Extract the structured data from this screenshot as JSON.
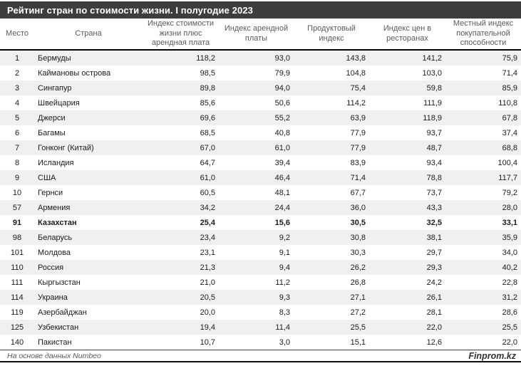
{
  "title": "Рейтинг стран по стоимости жизни. I полугодие 2023",
  "table": {
    "header": [
      "Место",
      "Страна",
      "Индекс стоимости\nжизни плюс\nарендная плата",
      "Индекс арендной\nплаты",
      "Продуктовый\nиндекс",
      "Индекс цен в\nресторанах",
      "Местный индекс\nпокупательной\nспособности"
    ],
    "rows": [
      {
        "rank": "1",
        "country": "Бермуды",
        "values": [
          "118,2",
          "93,0",
          "143,8",
          "141,2",
          "75,9"
        ],
        "bold": false
      },
      {
        "rank": "2",
        "country": "Каймановы острова",
        "values": [
          "98,5",
          "79,9",
          "104,8",
          "103,0",
          "71,4"
        ],
        "bold": false
      },
      {
        "rank": "3",
        "country": "Сингапур",
        "values": [
          "89,8",
          "94,0",
          "75,4",
          "59,8",
          "85,9"
        ],
        "bold": false
      },
      {
        "rank": "4",
        "country": "Швейцария",
        "values": [
          "85,6",
          "50,6",
          "114,2",
          "111,9",
          "110,8"
        ],
        "bold": false
      },
      {
        "rank": "5",
        "country": "Джерси",
        "values": [
          "69,6",
          "55,2",
          "63,9",
          "118,9",
          "67,8"
        ],
        "bold": false
      },
      {
        "rank": "6",
        "country": "Багамы",
        "values": [
          "68,5",
          "40,8",
          "77,9",
          "93,7",
          "37,4"
        ],
        "bold": false
      },
      {
        "rank": "7",
        "country": "Гонконг (Китай)",
        "values": [
          "67,0",
          "61,0",
          "77,9",
          "48,7",
          "68,8"
        ],
        "bold": false
      },
      {
        "rank": "8",
        "country": "Исландия",
        "values": [
          "64,7",
          "39,4",
          "83,9",
          "93,4",
          "100,4"
        ],
        "bold": false
      },
      {
        "rank": "9",
        "country": "США",
        "values": [
          "61,0",
          "46,4",
          "71,4",
          "78,8",
          "117,7"
        ],
        "bold": false
      },
      {
        "rank": "10",
        "country": "Гернси",
        "values": [
          "60,5",
          "48,1",
          "67,7",
          "73,7",
          "79,2"
        ],
        "bold": false
      },
      {
        "rank": "57",
        "country": "Армения",
        "values": [
          "34,2",
          "24,4",
          "36,0",
          "43,3",
          "28,0"
        ],
        "bold": false
      },
      {
        "rank": "91",
        "country": "Казахстан",
        "values": [
          "25,4",
          "15,6",
          "30,5",
          "32,5",
          "33,1"
        ],
        "bold": true
      },
      {
        "rank": "98",
        "country": "Беларусь",
        "values": [
          "23,4",
          "9,2",
          "30,8",
          "38,1",
          "35,9"
        ],
        "bold": false
      },
      {
        "rank": "101",
        "country": "Молдова",
        "values": [
          "23,1",
          "9,1",
          "30,3",
          "29,7",
          "34,0"
        ],
        "bold": false
      },
      {
        "rank": "110",
        "country": "Россия",
        "values": [
          "21,3",
          "9,4",
          "26,2",
          "29,3",
          "40,2"
        ],
        "bold": false
      },
      {
        "rank": "111",
        "country": "Кыргызстан",
        "values": [
          "21,0",
          "11,2",
          "26,8",
          "24,2",
          "22,8"
        ],
        "bold": false
      },
      {
        "rank": "114",
        "country": "Украина",
        "values": [
          "20,5",
          "9,3",
          "27,1",
          "26,1",
          "31,2"
        ],
        "bold": false
      },
      {
        "rank": "119",
        "country": "Азербайджан",
        "values": [
          "20,0",
          "8,3",
          "27,2",
          "28,1",
          "28,6"
        ],
        "bold": false
      },
      {
        "rank": "125",
        "country": "Узбекистан",
        "values": [
          "19,4",
          "11,4",
          "25,5",
          "22,0",
          "25,5"
        ],
        "bold": false
      },
      {
        "rank": "140",
        "country": "Пакистан",
        "values": [
          "10,7",
          "3,0",
          "15,1",
          "12,6",
          "22,0"
        ],
        "bold": false
      }
    ]
  },
  "footer": {
    "source": "На основе данных Numbeo",
    "brand": "Finprom.kz"
  },
  "colors": {
    "title_bar_bg": "#3d3d3d",
    "title_text": "#ffffff",
    "header_text": "#595959",
    "row_stripe": "#f0f0f0",
    "data_text": "#1a1a1a",
    "heavy_border": "#000000"
  },
  "chart_data": {
    "type": "table",
    "title": "Рейтинг стран по стоимости жизни. I полугодие 2023",
    "columns": [
      "Место",
      "Страна",
      "Индекс стоимости жизни плюс арендная плата",
      "Индекс арендной платы",
      "Продуктовый индекс",
      "Индекс цен в ресторанах",
      "Местный индекс покупательной способности"
    ],
    "rows": [
      [
        1,
        "Бермуды",
        118.2,
        93.0,
        143.8,
        141.2,
        75.9
      ],
      [
        2,
        "Каймановы острова",
        98.5,
        79.9,
        104.8,
        103.0,
        71.4
      ],
      [
        3,
        "Сингапур",
        89.8,
        94.0,
        75.4,
        59.8,
        85.9
      ],
      [
        4,
        "Швейцария",
        85.6,
        50.6,
        114.2,
        111.9,
        110.8
      ],
      [
        5,
        "Джерси",
        69.6,
        55.2,
        63.9,
        118.9,
        67.8
      ],
      [
        6,
        "Багамы",
        68.5,
        40.8,
        77.9,
        93.7,
        37.4
      ],
      [
        7,
        "Гонконг (Китай)",
        67.0,
        61.0,
        77.9,
        48.7,
        68.8
      ],
      [
        8,
        "Исландия",
        64.7,
        39.4,
        83.9,
        93.4,
        100.4
      ],
      [
        9,
        "США",
        61.0,
        46.4,
        71.4,
        78.8,
        117.7
      ],
      [
        10,
        "Гернси",
        60.5,
        48.1,
        67.7,
        73.7,
        79.2
      ],
      [
        57,
        "Армения",
        34.2,
        24.4,
        36.0,
        43.3,
        28.0
      ],
      [
        91,
        "Казахстан",
        25.4,
        15.6,
        30.5,
        32.5,
        33.1
      ],
      [
        98,
        "Беларусь",
        23.4,
        9.2,
        30.8,
        38.1,
        35.9
      ],
      [
        101,
        "Молдова",
        23.1,
        9.1,
        30.3,
        29.7,
        34.0
      ],
      [
        110,
        "Россия",
        21.3,
        9.4,
        26.2,
        29.3,
        40.2
      ],
      [
        111,
        "Кыргызстан",
        21.0,
        11.2,
        26.8,
        24.2,
        22.8
      ],
      [
        114,
        "Украина",
        20.5,
        9.3,
        27.1,
        26.1,
        31.2
      ],
      [
        119,
        "Азербайджан",
        20.0,
        8.3,
        27.2,
        28.1,
        28.6
      ],
      [
        125,
        "Узбекистан",
        19.4,
        11.4,
        25.5,
        22.0,
        25.5
      ],
      [
        140,
        "Пакистан",
        10.7,
        3.0,
        15.1,
        12.6,
        22.0
      ]
    ],
    "highlighted_row": "Казахстан",
    "source": "Numbeo"
  }
}
